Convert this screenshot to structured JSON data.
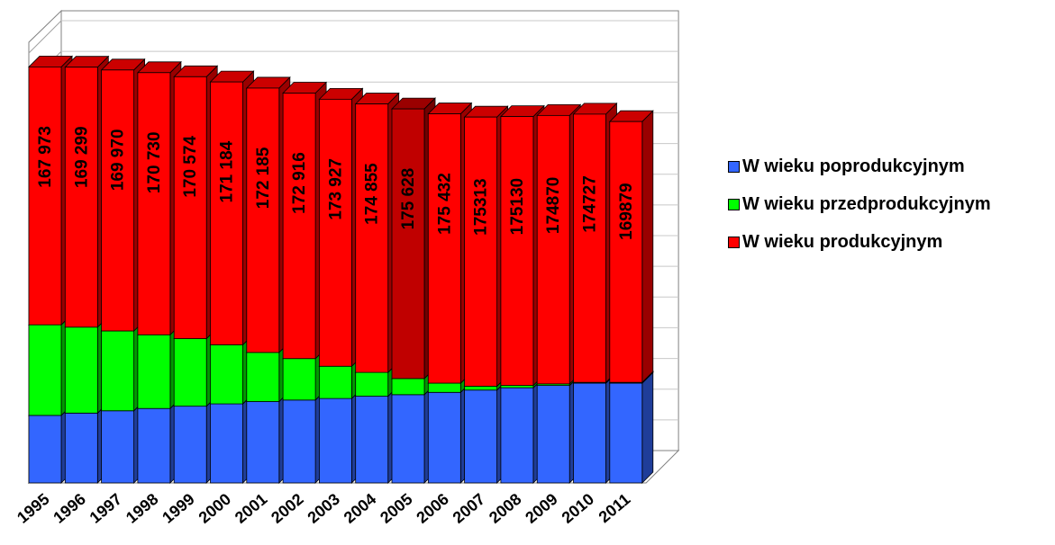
{
  "chart_data": {
    "type": "bar",
    "stacked": true,
    "three_d": true,
    "categories": [
      "1995",
      "1996",
      "1997",
      "1998",
      "1999",
      "2000",
      "2001",
      "2002",
      "2003",
      "2004",
      "2005",
      "2006",
      "2007",
      "2008",
      "2009",
      "2010",
      "2011"
    ],
    "series": [
      {
        "name": "W wieku poprodukcyjnym",
        "color": "#3366ff",
        "values": [
          44000,
          45500,
          47000,
          48500,
          50000,
          51500,
          53000,
          54000,
          55000,
          56500,
          57500,
          59000,
          60500,
          62000,
          63500,
          65000,
          65000
        ]
      },
      {
        "name": "W wieku przedprodukcyjnym",
        "color": "#00ff00",
        "values": [
          59000,
          56000,
          52000,
          48000,
          44000,
          38500,
          32000,
          27000,
          21000,
          15500,
          10500,
          6000,
          2500,
          1500,
          1000,
          500,
          500
        ]
      },
      {
        "name": "W wieku produkcyjnym",
        "color": "#ff0000",
        "values": [
          167973,
          169299,
          169970,
          170730,
          170574,
          171184,
          172185,
          172916,
          173927,
          174855,
          175628,
          175432,
          175313,
          175130,
          174870,
          174727,
          169879
        ],
        "labels": [
          "167 973",
          "169 299",
          "169 970",
          "170 730",
          "170 574",
          "171 184",
          "172 185",
          "172 916",
          "173 927",
          "174 855",
          "175 628",
          "175 432",
          "175313",
          "175130",
          "174870",
          "174727",
          "169879"
        ]
      }
    ],
    "highlight_index": 10,
    "highlight_color": "#c00000",
    "ylim": [
      0,
      280000
    ],
    "grid": true,
    "legend_position": "right",
    "title": "",
    "xlabel": "",
    "ylabel": ""
  },
  "legend": {
    "items": [
      {
        "label": "W wieku poprodukcyjnym",
        "color": "#3366ff"
      },
      {
        "label": "W wieku przedprodukcyjnym",
        "color": "#00ff00"
      },
      {
        "label": "W wieku produkcyjnym",
        "color": "#ff0000"
      }
    ]
  }
}
